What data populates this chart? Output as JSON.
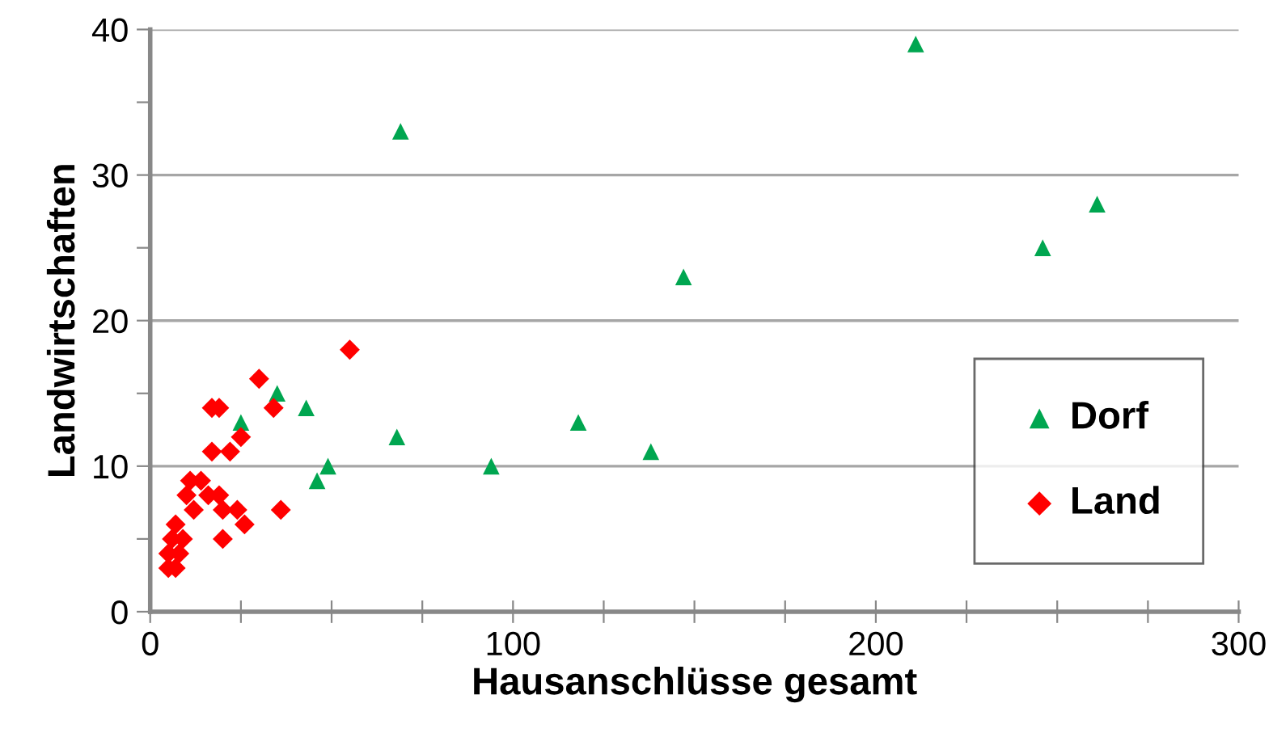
{
  "chart_data": {
    "type": "scatter",
    "xlabel": "Hausanschlüsse gesamt",
    "ylabel": "Landwirtschaften",
    "xlim": [
      0,
      300
    ],
    "ylim": [
      0,
      40
    ],
    "xticks": [
      0,
      {
        "value": 25,
        "label": null
      },
      {
        "value": 50,
        "label": null
      },
      {
        "value": 75,
        "label": null
      },
      100,
      {
        "value": 125,
        "label": null
      },
      {
        "value": 150,
        "label": null
      },
      {
        "value": 175,
        "label": null
      },
      200,
      {
        "value": 225,
        "label": null
      },
      {
        "value": 250,
        "label": null
      },
      {
        "value": 275,
        "label": null
      },
      300
    ],
    "yticks": [
      0,
      {
        "value": 5,
        "label": null
      },
      10,
      {
        "value": 15,
        "label": null
      },
      20,
      {
        "value": 25,
        "label": null
      },
      30,
      {
        "value": 35,
        "label": null
      },
      40
    ],
    "grid": "y",
    "legend": "bottom right",
    "series": [
      {
        "name": "Dorf",
        "color": "#00a650",
        "marker": "triangle",
        "x": [
          25,
          35,
          43,
          46,
          49,
          68,
          69,
          94,
          118,
          138,
          147,
          211,
          246,
          261
        ],
        "values": [
          13,
          15,
          14,
          9,
          10,
          12,
          33,
          10,
          13,
          11,
          23,
          39,
          25,
          28
        ]
      },
      {
        "name": "Land",
        "color": "#ff0000",
        "marker": "diamond",
        "x": [
          55,
          30,
          17,
          19,
          34,
          25,
          17,
          22,
          11,
          14,
          16,
          19,
          10,
          20,
          24,
          36,
          12,
          26,
          20,
          9,
          5,
          8,
          5,
          7,
          6,
          7
        ],
        "values": [
          18,
          16,
          14,
          14,
          14,
          12,
          11,
          11,
          9,
          9,
          8,
          8,
          8,
          7,
          7,
          7,
          7,
          6,
          5,
          5,
          4,
          4,
          3,
          3,
          5,
          6
        ]
      }
    ]
  }
}
